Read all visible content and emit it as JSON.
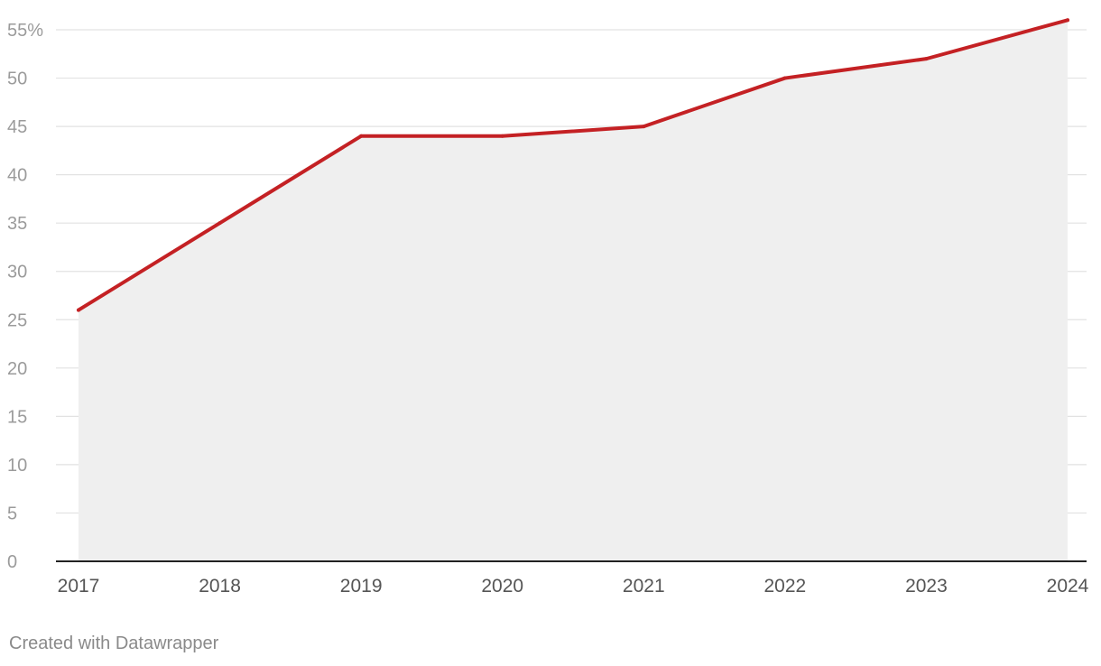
{
  "chart_data": {
    "type": "area",
    "title": "",
    "xlabel": "",
    "ylabel": "",
    "x": [
      "2017",
      "2018",
      "2019",
      "2020",
      "2021",
      "2022",
      "2023",
      "2024"
    ],
    "series": [
      {
        "values": [
          26,
          35,
          44,
          44,
          45,
          50,
          52,
          56
        ]
      }
    ],
    "ylim": [
      0,
      55
    ],
    "yticks": [
      0,
      5,
      10,
      15,
      20,
      25,
      30,
      35,
      40,
      45,
      50,
      55
    ],
    "ytick_labels": [
      "0",
      "5",
      "10",
      "15",
      "20",
      "25",
      "30",
      "35",
      "40",
      "45",
      "50",
      "55%"
    ],
    "grid": true,
    "colors": {
      "line": "#c42124",
      "area": "#efefef",
      "grid": "#e2e2e2",
      "axis": "#222222"
    }
  },
  "footer": {
    "credit": "Created with Datawrapper"
  }
}
